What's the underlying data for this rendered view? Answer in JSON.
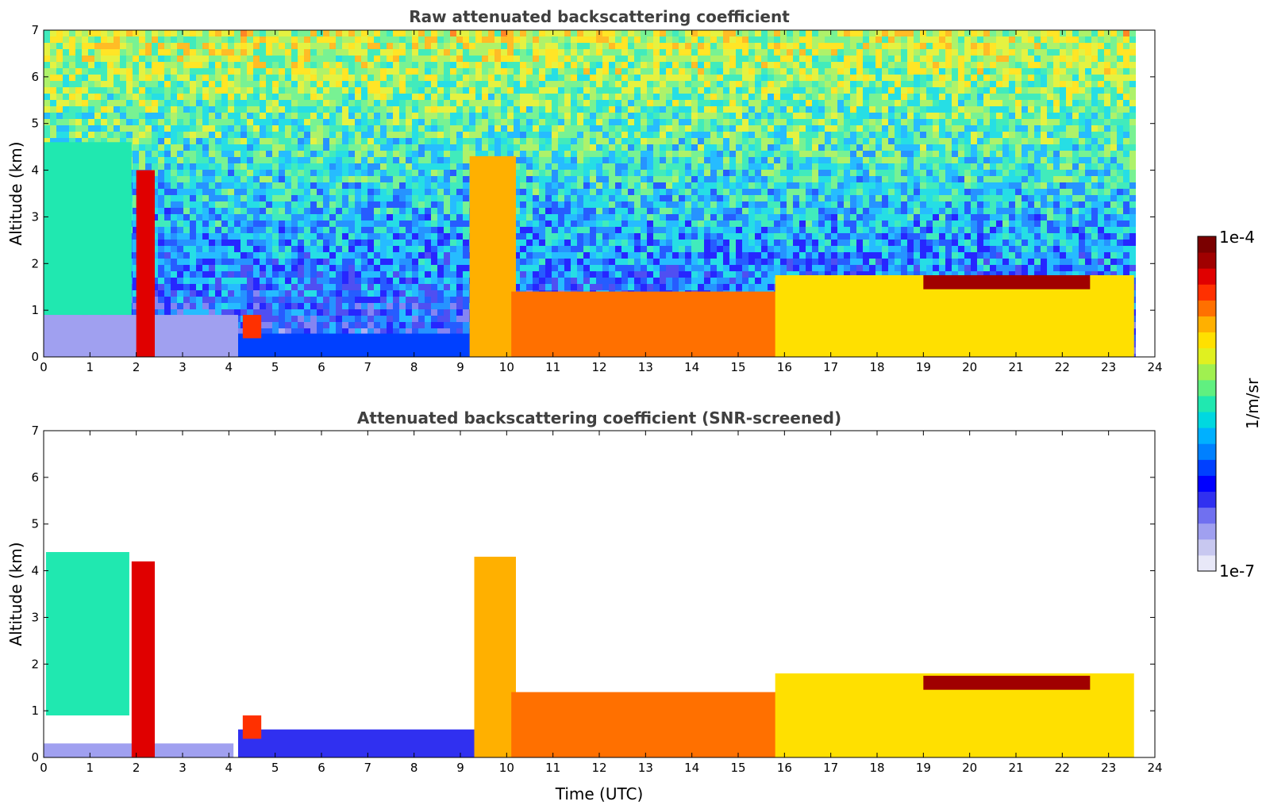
{
  "chart_data": [
    {
      "type": "heatmap",
      "title": "Raw attenuated backscattering coefficient",
      "xlabel": "",
      "ylabel": "Altitude (km)",
      "xlim": [
        0,
        24
      ],
      "ylim": [
        0,
        7
      ],
      "x_ticks": [
        "0",
        "1",
        "2",
        "3",
        "4",
        "5",
        "6",
        "7",
        "8",
        "9",
        "10",
        "11",
        "12",
        "13",
        "14",
        "15",
        "16",
        "17",
        "18",
        "19",
        "20",
        "21",
        "22",
        "23",
        "24"
      ],
      "y_ticks": [
        "0",
        "1",
        "2",
        "3",
        "4",
        "5",
        "6",
        "7"
      ],
      "data_end_hour": 23.55,
      "color_scale": "log",
      "value_range": [
        "1e-7",
        "1e-4"
      ],
      "features": [
        {
          "name": "surface layer",
          "start": 0.0,
          "end": 2.2,
          "bottom": 0.0,
          "top": 0.15,
          "level": 0.95
        },
        {
          "name": "faint residual layer",
          "start": 0.0,
          "end": 4.2,
          "bottom": 0.0,
          "top": 0.9,
          "level": 0.12
        },
        {
          "name": "aerosol plume",
          "start": 0.0,
          "end": 1.9,
          "bottom": 0.9,
          "top": 4.6,
          "level": 0.5
        },
        {
          "name": "boundary layer haze",
          "start": 4.2,
          "end": 10.2,
          "bottom": 0.0,
          "top": 0.5,
          "level": 0.3
        },
        {
          "name": "precipitation streak 1",
          "start": 2.0,
          "end": 2.4,
          "bottom": 0.0,
          "top": 4.0,
          "level": 0.9
        },
        {
          "name": "precipitation streak 2",
          "start": 9.2,
          "end": 10.2,
          "bottom": 0.0,
          "top": 4.3,
          "level": 0.75
        },
        {
          "name": "cloud patch",
          "start": 4.3,
          "end": 4.7,
          "bottom": 0.4,
          "top": 0.9,
          "level": 0.85
        },
        {
          "name": "boundary layer clouds",
          "start": 10.1,
          "end": 16.0,
          "bottom": 0.0,
          "top": 1.4,
          "level": 0.8
        },
        {
          "name": "stratocumulus deck",
          "start": 15.8,
          "end": 23.55,
          "bottom": 0.0,
          "top": 1.75,
          "level": 0.7
        },
        {
          "name": "cloud top band",
          "start": 19.0,
          "end": 22.6,
          "bottom": 1.45,
          "top": 1.75,
          "level": 0.95
        }
      ]
    },
    {
      "type": "heatmap",
      "title": "Attenuated backscattering coefficient (SNR-screened)",
      "xlabel": "Time (UTC)",
      "ylabel": "Altitude (km)",
      "xlim": [
        0,
        24
      ],
      "ylim": [
        0,
        7
      ],
      "x_ticks": [
        "0",
        "1",
        "2",
        "3",
        "4",
        "5",
        "6",
        "7",
        "8",
        "9",
        "10",
        "11",
        "12",
        "13",
        "14",
        "15",
        "16",
        "17",
        "18",
        "19",
        "20",
        "21",
        "22",
        "23",
        "24"
      ],
      "y_ticks": [
        "0",
        "1",
        "2",
        "3",
        "4",
        "5",
        "6",
        "7"
      ],
      "data_end_hour": 23.55,
      "color_scale": "log",
      "value_range": [
        "1e-7",
        "1e-4"
      ],
      "features": [
        {
          "name": "surface layer",
          "start": 0.0,
          "end": 2.2,
          "bottom": 0.0,
          "top": 0.15,
          "level": 0.95
        },
        {
          "name": "residual layer",
          "start": 0.0,
          "end": 4.1,
          "bottom": 0.0,
          "top": 0.3,
          "level": 0.1
        },
        {
          "name": "aerosol plume",
          "start": 0.05,
          "end": 1.85,
          "bottom": 0.9,
          "top": 4.4,
          "level": 0.5
        },
        {
          "name": "boundary layer haze",
          "start": 4.2,
          "end": 10.2,
          "bottom": 0.0,
          "top": 0.6,
          "level": 0.2
        },
        {
          "name": "precipitation streak 1",
          "start": 1.9,
          "end": 2.4,
          "bottom": 0.0,
          "top": 4.2,
          "level": 0.9
        },
        {
          "name": "precipitation streak 2",
          "start": 9.3,
          "end": 10.2,
          "bottom": 0.0,
          "top": 4.3,
          "level": 0.75
        },
        {
          "name": "cloud patch",
          "start": 4.3,
          "end": 4.7,
          "bottom": 0.4,
          "top": 0.9,
          "level": 0.85
        },
        {
          "name": "boundary layer clouds",
          "start": 10.1,
          "end": 16.0,
          "bottom": 0.0,
          "top": 1.4,
          "level": 0.8
        },
        {
          "name": "stratocumulus deck",
          "start": 15.8,
          "end": 23.55,
          "bottom": 0.0,
          "top": 1.8,
          "level": 0.7
        },
        {
          "name": "cloud top band",
          "start": 19.0,
          "end": 22.6,
          "bottom": 1.45,
          "top": 1.75,
          "level": 0.95
        }
      ]
    }
  ],
  "colorbar": {
    "label": "1/m/sr",
    "max_label": "1e-4",
    "min_label": "1e-7",
    "colors": [
      "#e8e8f8",
      "#c8c8f0",
      "#a0a0f0",
      "#7070f0",
      "#3030f0",
      "#0000ff",
      "#0040ff",
      "#0080ff",
      "#00b0ff",
      "#00d8e0",
      "#20e8b0",
      "#60f080",
      "#a0f050",
      "#e0f020",
      "#ffe000",
      "#ffb000",
      "#ff7000",
      "#ff3000",
      "#e00000",
      "#a00000",
      "#7a0000"
    ]
  }
}
